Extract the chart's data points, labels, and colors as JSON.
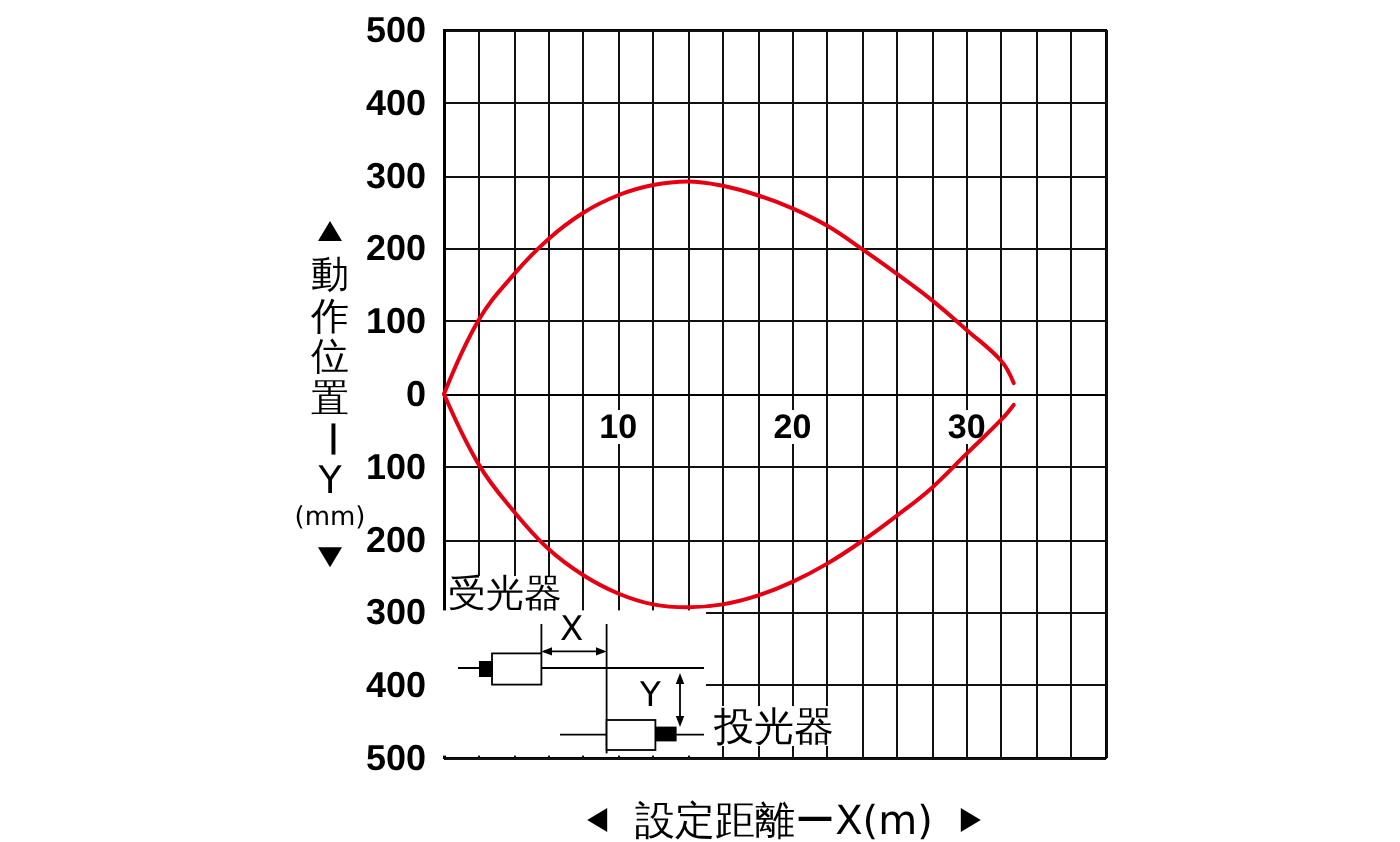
{
  "chart_data": {
    "type": "line",
    "xlabel": "設定距離ーX(m)",
    "ylabel": "動作位置ーY(mm)",
    "annotations": [
      "受光器",
      "X",
      "Y",
      "投光器"
    ],
    "x": [
      0,
      2,
      4,
      6,
      8,
      10,
      12,
      14,
      16,
      18,
      20,
      22,
      24,
      26,
      28,
      30,
      32,
      32.7
    ],
    "series": [
      {
        "color": "#e60012",
        "values": [
          0,
          102,
          164,
          213,
          249,
          273,
          287,
          292,
          286,
          273,
          255,
          231,
          199,
          165,
          129,
          88,
          45,
          15
        ]
      },
      {
        "color": "#e60012",
        "values": [
          0,
          -97,
          -161,
          -213,
          -249,
          -274,
          -289,
          -293,
          -289,
          -277,
          -258,
          -233,
          -202,
          -167,
          -129,
          -82,
          -35,
          -15
        ]
      }
    ],
    "xlim": [
      0,
      38
    ],
    "xticks": [
      {
        "value": 0,
        "label": null
      },
      {
        "value": 2,
        "label": null
      },
      {
        "value": 4,
        "label": null
      },
      {
        "value": 6,
        "label": null
      },
      {
        "value": 8,
        "label": null
      },
      10,
      {
        "value": 12,
        "label": null
      },
      {
        "value": 14,
        "label": null
      },
      {
        "value": 16,
        "label": null
      },
      {
        "value": 18,
        "label": null
      },
      20,
      {
        "value": 22,
        "label": null
      },
      {
        "value": 24,
        "label": null
      },
      {
        "value": 26,
        "label": null
      },
      {
        "value": 28,
        "label": null
      },
      30,
      {
        "value": 32,
        "label": null
      },
      {
        "value": 34,
        "label": null
      },
      {
        "value": 36,
        "label": null
      },
      {
        "value": 38,
        "label": null
      }
    ],
    "ylim": [
      -500,
      500
    ],
    "yticks": [
      {
        "value": -500,
        "label": "500"
      },
      {
        "value": -400,
        "label": "400"
      },
      {
        "value": -300,
        "label": "300"
      },
      {
        "value": -200,
        "label": "200"
      },
      {
        "value": -100,
        "label": "100"
      },
      0,
      100,
      200,
      300,
      400,
      500
    ],
    "grid": true,
    "marker": "none",
    "line_style": "solid"
  }
}
